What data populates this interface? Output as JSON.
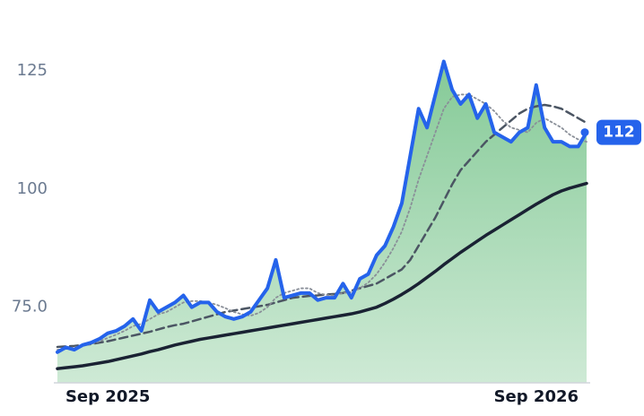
{
  "chart_data": {
    "type": "line",
    "categories": [
      null,
      null,
      null,
      null,
      null,
      null,
      "Sep 2025",
      null,
      null,
      null,
      null,
      null,
      null,
      null,
      null,
      null,
      null,
      null,
      null,
      null,
      null,
      null,
      null,
      null,
      null,
      null,
      null,
      null,
      null,
      null,
      null,
      null,
      null,
      null,
      null,
      null,
      null,
      null,
      null,
      null,
      null,
      null,
      null,
      null,
      null,
      null,
      null,
      null,
      null,
      null,
      null,
      null,
      null,
      null,
      null,
      null,
      null,
      "Sep 2026",
      null,
      null,
      null,
      null,
      null,
      null
    ],
    "series": [
      {
        "color": "#2563eb",
        "style": "solid",
        "width": 4,
        "area": "#5cb874",
        "values": [
          65.5,
          66.5,
          66,
          67,
          67.5,
          68.3,
          69.5,
          70,
          71,
          72.5,
          70,
          76.5,
          74,
          75,
          76,
          77.5,
          75,
          76,
          76,
          74,
          73,
          72.5,
          73,
          74,
          76.5,
          79,
          85,
          77,
          77.5,
          78,
          78,
          76.5,
          77,
          77,
          80,
          77,
          81,
          82,
          86,
          88,
          92,
          97,
          107,
          117,
          113,
          120,
          127,
          121,
          118,
          120,
          115,
          118,
          112,
          111,
          110,
          112,
          113,
          122,
          113,
          110,
          110,
          109,
          109,
          112
        ]
      },
      {
        "color": "#8a8f98",
        "style": "dotted",
        "width": 1.8,
        "values": [
          66,
          66.3,
          66.5,
          66.8,
          67.2,
          67.8,
          68.5,
          69.2,
          70,
          71,
          71.5,
          72.5,
          73.5,
          74,
          75,
          76,
          76.3,
          76.3,
          76,
          75.5,
          74.8,
          74,
          73.5,
          73.2,
          73.8,
          75,
          77,
          78,
          78.5,
          79,
          79,
          78,
          77.6,
          77.5,
          78,
          78.2,
          79,
          80.2,
          82,
          84.5,
          87.5,
          91,
          96,
          102,
          107,
          112,
          117,
          119.5,
          120,
          120,
          119,
          118,
          116.5,
          114.5,
          113,
          112.5,
          112,
          114,
          115,
          114,
          113,
          111.5,
          110.5,
          110
        ]
      },
      {
        "color": "#4b5563",
        "style": "dashed",
        "width": 2.5,
        "values": [
          66.6,
          66.7,
          66.8,
          67,
          67.2,
          67.5,
          67.8,
          68.2,
          68.6,
          69,
          69.4,
          69.8,
          70.3,
          70.8,
          71.2,
          71.5,
          72,
          72.5,
          73,
          73.5,
          74,
          74.3,
          74.6,
          74.9,
          75.2,
          75.5,
          76,
          76.5,
          77,
          77.2,
          77.4,
          77.5,
          77.7,
          77.8,
          78,
          78.5,
          79,
          79.5,
          80,
          81,
          82,
          83,
          85,
          88,
          91,
          94,
          97.5,
          101,
          104,
          106,
          108,
          110,
          111.5,
          113,
          114.5,
          116,
          117,
          117.5,
          117.8,
          117.5,
          117,
          116,
          115,
          114
        ]
      },
      {
        "color": "#1a2233",
        "style": "solid",
        "width": 3.5,
        "values": [
          62,
          62.2,
          62.4,
          62.6,
          62.9,
          63.2,
          63.5,
          63.9,
          64.3,
          64.7,
          65.1,
          65.6,
          66,
          66.5,
          67,
          67.4,
          67.8,
          68.2,
          68.5,
          68.8,
          69.1,
          69.4,
          69.7,
          70,
          70.3,
          70.6,
          70.9,
          71.2,
          71.5,
          71.8,
          72.1,
          72.4,
          72.7,
          73,
          73.3,
          73.6,
          74,
          74.5,
          75,
          75.8,
          76.7,
          77.7,
          78.8,
          80,
          81.3,
          82.6,
          84,
          85.3,
          86.6,
          87.8,
          89,
          90.2,
          91.3,
          92.4,
          93.5,
          94.6,
          95.7,
          96.8,
          97.8,
          98.8,
          99.6,
          100.2,
          100.7,
          101.2
        ]
      }
    ],
    "ylim": [
      59,
      140
    ],
    "yticks": [
      {
        "value": 75,
        "label": "75.0"
      },
      100,
      125
    ],
    "last_value_badge": true
  }
}
